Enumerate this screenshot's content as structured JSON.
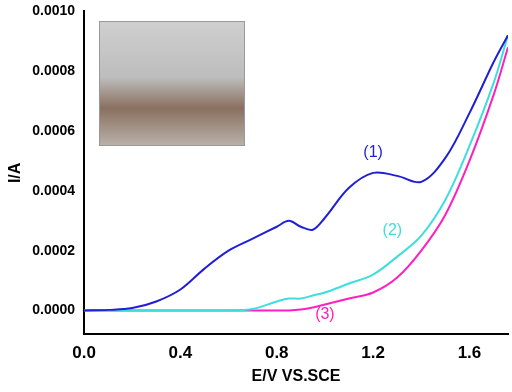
{
  "chart_data": {
    "type": "line",
    "x_label": "E/V VS.SCE",
    "y_label": "I/A",
    "x": [
      0,
      0.1,
      0.2,
      0.3,
      0.4,
      0.5,
      0.6,
      0.7,
      0.8,
      0.85,
      0.9,
      0.95,
      1.0,
      1.1,
      1.2,
      1.3,
      1.4,
      1.5,
      1.6,
      1.7,
      1.76
    ],
    "series": [
      {
        "name": "(1)",
        "color": "#1f1fd6",
        "values": [
          0,
          2e-06,
          8e-06,
          3e-05,
          7e-05,
          0.00014,
          0.0002,
          0.00024,
          0.00028,
          0.0003,
          0.00028,
          0.00027,
          0.00031,
          0.00041,
          0.00046,
          0.00045,
          0.00043,
          0.00051,
          0.00066,
          0.00083,
          0.00092
        ]
      },
      {
        "name": "(2)",
        "color": "#3fdede",
        "values": [
          0,
          0,
          0,
          0,
          0,
          0,
          0,
          5e-06,
          3e-05,
          4e-05,
          4e-05,
          5e-05,
          6e-05,
          9e-05,
          0.00012,
          0.00018,
          0.00025,
          0.00037,
          0.00055,
          0.00076,
          0.00092
        ]
      },
      {
        "name": "(3)",
        "color": "#ff1fbf",
        "values": [
          0,
          0,
          0,
          0,
          0,
          0,
          0,
          0,
          0,
          0,
          3e-06,
          1e-05,
          2e-05,
          4e-05,
          6e-05,
          0.00011,
          0.0002,
          0.00032,
          0.0005,
          0.00072,
          0.00088
        ]
      }
    ],
    "annotations": [
      {
        "text": "(1)",
        "x": 1.2,
        "y": 0.0005,
        "color": "#1f1fd6"
      },
      {
        "text": "(2)",
        "x": 1.28,
        "y": 0.00024,
        "color": "#3fdede"
      },
      {
        "text": "(3)",
        "x": 1.0,
        "y": -4e-05,
        "color": "#ff1fbf"
      }
    ],
    "xlim": [
      0,
      1.76
    ],
    "ylim": [
      -8e-05,
      0.001
    ],
    "xticks": [
      {
        "value": 0,
        "label": "0.0"
      },
      0.4,
      0.8,
      1.2,
      1.6
    ],
    "yticks": [
      {
        "value": 0,
        "label": "0.0000"
      },
      {
        "value": 0.0002,
        "label": "0.0002"
      },
      {
        "value": 0.0004,
        "label": "0.0004"
      },
      {
        "value": 0.0006,
        "label": "0.0006"
      },
      {
        "value": 0.0008,
        "label": "0.0008"
      },
      {
        "value": 0.001,
        "label": "0.0010"
      }
    ],
    "grid": false,
    "legend": false
  }
}
